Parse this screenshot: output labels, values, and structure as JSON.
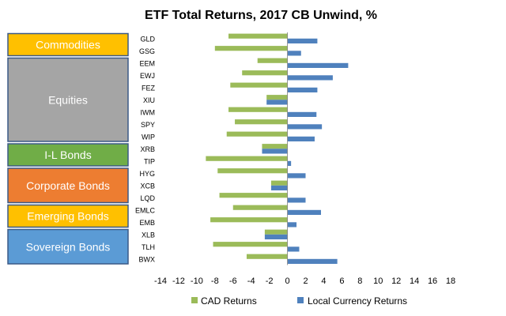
{
  "chart_data": {
    "type": "bar",
    "orientation": "horizontal",
    "title": "ETF Total Returns, 2017 CB Unwind, %",
    "categories": [
      "GLD",
      "GSG",
      "EEM",
      "EWJ",
      "FEZ",
      "XIU",
      "IWM",
      "SPY",
      "WIP",
      "XRB",
      "TIP",
      "HYG",
      "XCB",
      "LQD",
      "EMLC",
      "EMB",
      "XLB",
      "TLH",
      "BWX"
    ],
    "series": [
      {
        "name": "CAD Returns",
        "color": "#9bbb59",
        "values": [
          -6.5,
          -8.0,
          -3.3,
          -5.0,
          -6.3,
          -2.3,
          -6.5,
          -5.8,
          -6.7,
          -2.8,
          -9.0,
          -7.7,
          -1.8,
          -7.5,
          -6.0,
          -8.5,
          -2.5,
          -8.2,
          -4.5
        ]
      },
      {
        "name": "Local Currency Returns",
        "color": "#4f81bd",
        "values": [
          3.3,
          1.5,
          6.7,
          5.0,
          3.3,
          -2.3,
          3.2,
          3.8,
          3.0,
          -2.8,
          0.4,
          2.0,
          -1.8,
          2.0,
          3.7,
          1.0,
          -2.5,
          1.3,
          5.5
        ]
      }
    ],
    "xlim": [
      -14,
      18
    ],
    "xticks": [
      "-14",
      "-12",
      "-10",
      "-8",
      "-6",
      "-4",
      "-2",
      "0",
      "2",
      "4",
      "6",
      "8",
      "10",
      "12",
      "14",
      "16",
      "18"
    ],
    "grid": false,
    "legend": "bottom",
    "groups": [
      {
        "label": "Commodities",
        "color": "#ffc000",
        "first": 0,
        "last": 1
      },
      {
        "label": "Equities",
        "color": "#a5a5a5",
        "first": 2,
        "last": 8
      },
      {
        "label": "I-L Bonds",
        "color": "#70ad47",
        "first": 9,
        "last": 10
      },
      {
        "label": "Corporate Bonds",
        "color": "#ed7d31",
        "first": 11,
        "last": 13
      },
      {
        "label": "Emerging Bonds",
        "color": "#ffc000",
        "first": 14,
        "last": 15
      },
      {
        "label": "Sovereign Bonds",
        "color": "#5b9bd5",
        "first": 16,
        "last": 18
      }
    ]
  }
}
